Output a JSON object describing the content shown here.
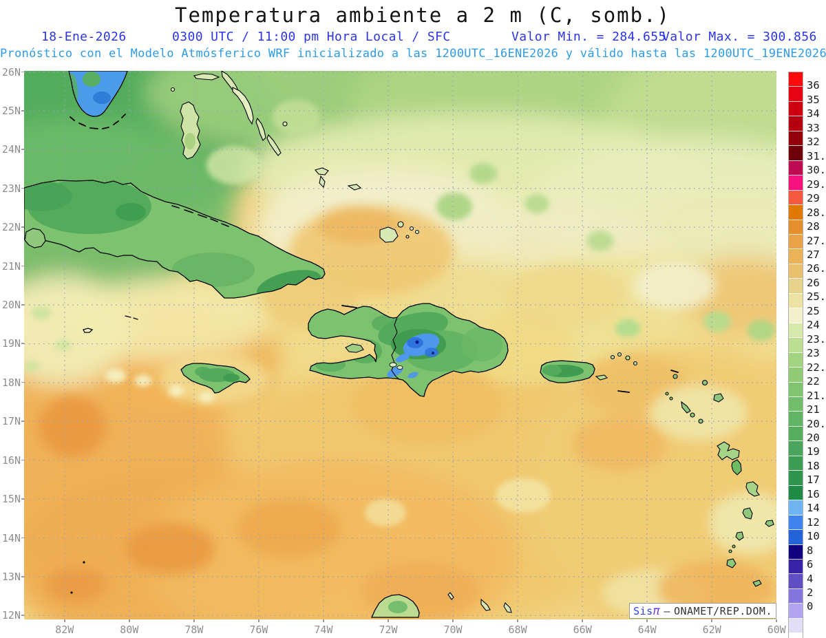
{
  "header": {
    "title": "Temperatura ambiente a 2 m (C, somb.)",
    "date": "18-Ene-2026",
    "time": "0300 UTC / 11:00 pm Hora Local / SFC",
    "valor_min": "Valor Min. = 284.655",
    "valor_max": "Valor Max. = 300.856",
    "model_line": "Pronóstico con el Modelo Atmósferico WRF inicializado a las 1200UTC_16ENE2026 y válido hasta las 1200UTC_19ENE2026"
  },
  "map": {
    "lat_ticks": [
      "26N",
      "25N",
      "24N",
      "23N",
      "22N",
      "21N",
      "20N",
      "19N",
      "18N",
      "17N",
      "16N",
      "15N",
      "14N",
      "13N",
      "12N"
    ],
    "lon_ticks": [
      "82W",
      "80W",
      "78W",
      "76W",
      "74W",
      "72W",
      "70W",
      "68W",
      "66W",
      "64W",
      "62W",
      "60W"
    ],
    "grid_color": "#9AA2B8",
    "label_color": "#8E8E8E"
  },
  "colorbar": {
    "unit": "C",
    "labels": [
      "36",
      "35",
      "34",
      "33",
      "32",
      "31.5",
      "30.7",
      "29.7",
      "29",
      "28.5",
      "28",
      "27.5",
      "27",
      "26.5",
      "26",
      "25.5",
      "25",
      "24",
      "23.5",
      "23",
      "22.5",
      "22",
      "21.5",
      "21",
      "20.5",
      "20",
      "19",
      "18",
      "17",
      "16",
      "14",
      "12",
      "10",
      "8",
      "6",
      "4",
      "2",
      "0"
    ],
    "colors": [
      "#FA0A0A",
      "#E60414",
      "#CE0010",
      "#B4000E",
      "#94000C",
      "#6E000A",
      "#BE0A50",
      "#F5127E",
      "#F85A40",
      "#E07800",
      "#E38F2E",
      "#E9A246",
      "#ECB258",
      "#E9C06E",
      "#E7D28A",
      "#ECE2A2",
      "#F3F0CE",
      "#D6E8AA",
      "#BCDE92",
      "#A2D37F",
      "#90CB76",
      "#80C46F",
      "#71BD6A",
      "#63B566",
      "#55AD60",
      "#48A55B",
      "#3C9D55",
      "#2E934D",
      "#1F8A44",
      "#6FB5F2",
      "#3E83F0",
      "#2263D8",
      "#10007E",
      "#3823A8",
      "#5F4EC4",
      "#8476DC",
      "#B2A4F0",
      "#E2DEF8",
      "#FFFFFF"
    ]
  },
  "attribution": {
    "sys_name": "Sis",
    "sys_pi": "π",
    "separator": "–",
    "org": "ONAMET/REP.DOM."
  },
  "theme": {
    "title_color": "#141414",
    "subtitle_color": "#2B35EC",
    "model_color": "#2E9BE8",
    "sea_base": "#F0D382",
    "land_green": "#7CC26F",
    "cold_blue": "#4E97ED"
  }
}
